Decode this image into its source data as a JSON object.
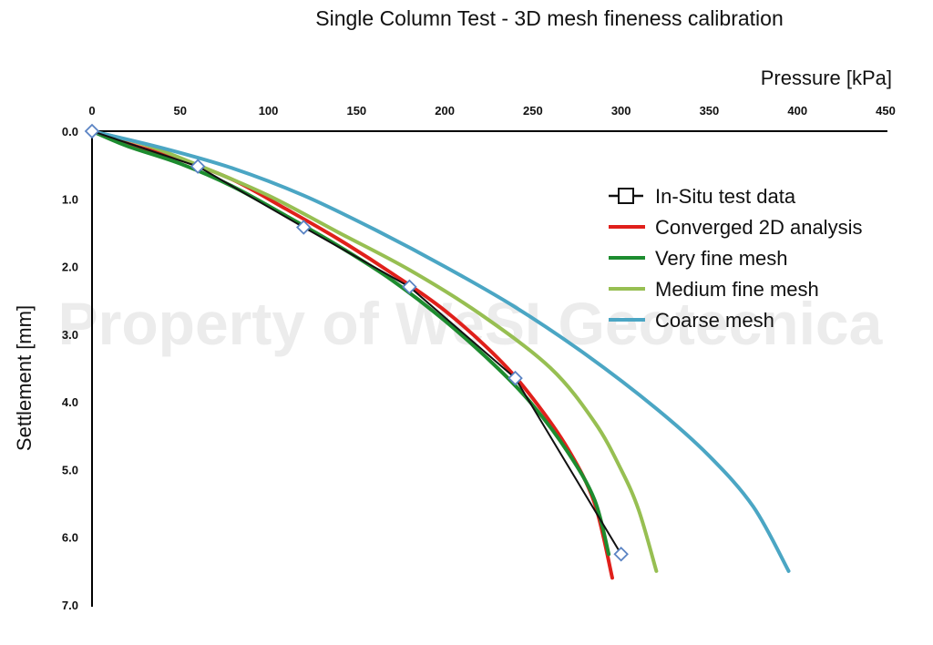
{
  "chart_data": {
    "type": "line",
    "title": "Single Column Test - 3D mesh fineness calibration",
    "xlabel": "Pressure [kPa]",
    "ylabel": "Settlement [mm]",
    "xlim": [
      0,
      450
    ],
    "ylim": [
      0,
      7
    ],
    "x_ticks": [
      "0",
      "50",
      "100",
      "150",
      "200",
      "250",
      "300",
      "350",
      "400",
      "450"
    ],
    "y_ticks": [
      "0.0",
      "1.0",
      "2.0",
      "3.0",
      "4.0",
      "5.0",
      "6.0",
      "7.0"
    ],
    "x_axis_position": "top",
    "y_axis_inverted": true,
    "legend_position": "right",
    "watermark": "Property of WeSI Geotecnica",
    "series": [
      {
        "name": "In-Situ test data",
        "color": "#111111",
        "marker": "diamond",
        "marker_color": "#5b84c4",
        "line_width": 2,
        "points": [
          [
            0,
            0
          ],
          [
            60,
            0.52
          ],
          [
            120,
            1.42
          ],
          [
            180,
            2.3
          ],
          [
            240,
            3.65
          ],
          [
            300,
            6.25
          ]
        ]
      },
      {
        "name": "Converged 2D analysis",
        "color": "#e0201b",
        "line_width": 4,
        "points": [
          [
            0,
            0
          ],
          [
            20,
            0.18
          ],
          [
            50,
            0.42
          ],
          [
            80,
            0.72
          ],
          [
            110,
            1.15
          ],
          [
            140,
            1.6
          ],
          [
            170,
            2.1
          ],
          [
            200,
            2.65
          ],
          [
            230,
            3.35
          ],
          [
            250,
            3.95
          ],
          [
            270,
            4.7
          ],
          [
            285,
            5.5
          ],
          [
            295,
            6.6
          ]
        ]
      },
      {
        "name": "Very fine mesh",
        "color": "#1d8c2f",
        "line_width": 4,
        "points": [
          [
            0,
            0
          ],
          [
            20,
            0.22
          ],
          [
            50,
            0.48
          ],
          [
            80,
            0.82
          ],
          [
            110,
            1.25
          ],
          [
            140,
            1.7
          ],
          [
            170,
            2.2
          ],
          [
            200,
            2.8
          ],
          [
            230,
            3.5
          ],
          [
            250,
            4.05
          ],
          [
            270,
            4.75
          ],
          [
            285,
            5.45
          ],
          [
            293,
            6.25
          ]
        ]
      },
      {
        "name": "Medium fine mesh",
        "color": "#97bf52",
        "line_width": 4,
        "points": [
          [
            0,
            0
          ],
          [
            30,
            0.2
          ],
          [
            60,
            0.5
          ],
          [
            100,
            0.95
          ],
          [
            140,
            1.5
          ],
          [
            180,
            2.05
          ],
          [
            220,
            2.7
          ],
          [
            260,
            3.5
          ],
          [
            285,
            4.3
          ],
          [
            300,
            5.0
          ],
          [
            310,
            5.6
          ],
          [
            320,
            6.5
          ]
        ]
      },
      {
        "name": "Coarse mesh",
        "color": "#4ba6c4",
        "line_width": 4,
        "points": [
          [
            0,
            0
          ],
          [
            40,
            0.25
          ],
          [
            80,
            0.55
          ],
          [
            120,
            0.95
          ],
          [
            160,
            1.45
          ],
          [
            200,
            2.0
          ],
          [
            240,
            2.6
          ],
          [
            280,
            3.3
          ],
          [
            320,
            4.1
          ],
          [
            350,
            4.8
          ],
          [
            375,
            5.55
          ],
          [
            395,
            6.5
          ]
        ]
      }
    ]
  }
}
